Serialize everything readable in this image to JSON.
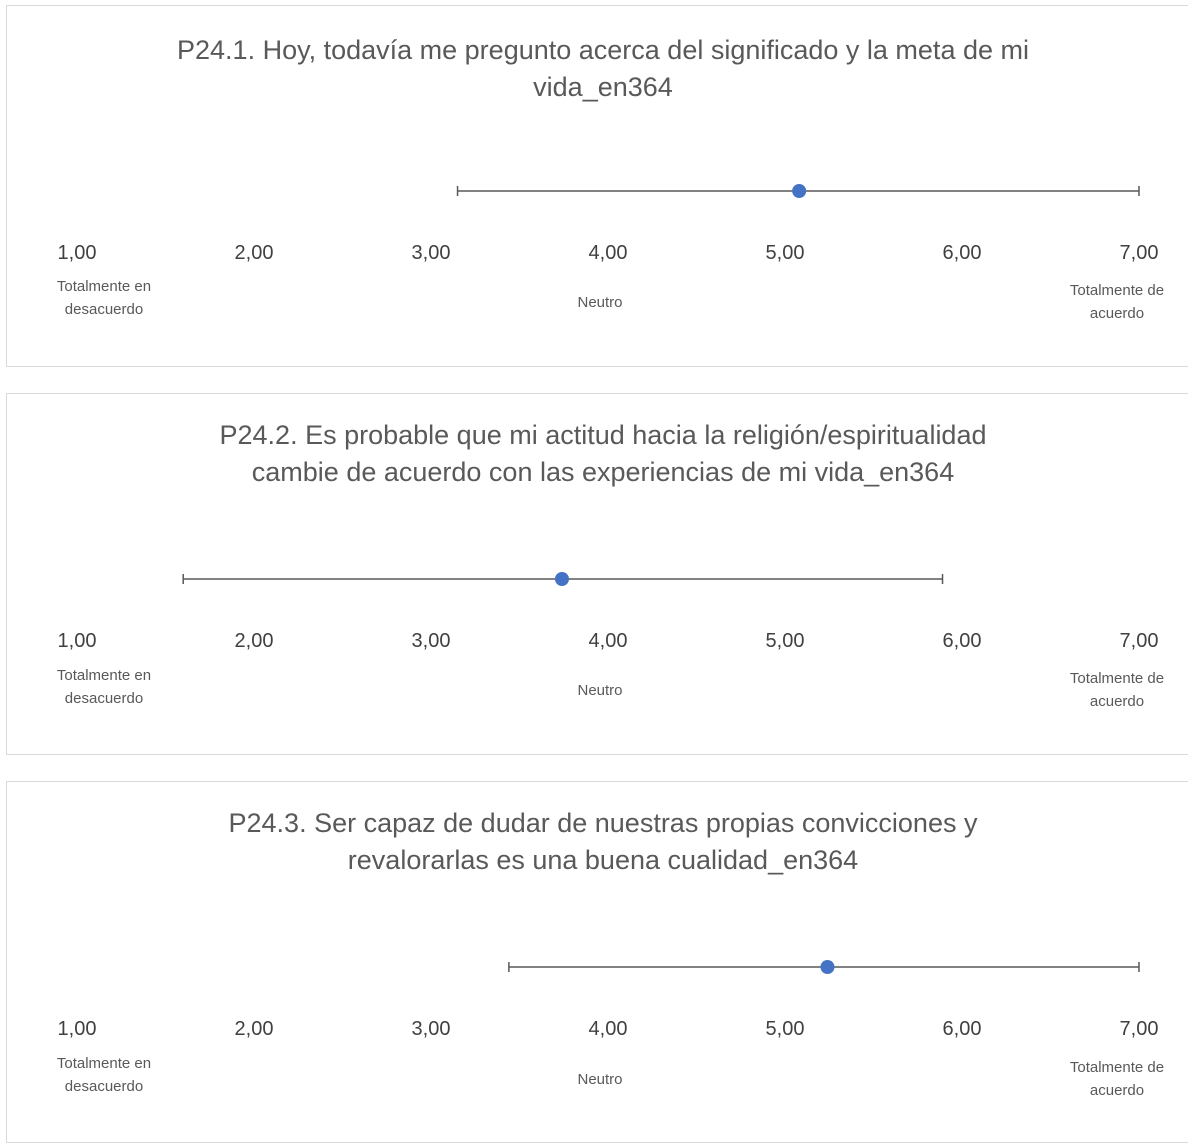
{
  "chart_data": [
    {
      "type": "scatter",
      "title_lines": [
        "P24.1. Hoy, todavía me pregunto acerca del significado y la meta de mi",
        "vida_en364"
      ],
      "xlim": [
        1,
        7
      ],
      "x_ticks": [
        "1,00",
        "2,00",
        "3,00",
        "4,00",
        "5,00",
        "6,00",
        "7,00"
      ],
      "anchors": {
        "left": [
          "Totalmente en",
          "desacuerdo"
        ],
        "center": [
          "Neutro"
        ],
        "right": [
          "Totalmente de",
          "acuerdo"
        ]
      },
      "point": {
        "mean": 5.08,
        "low": 3.15,
        "high": 7.0
      },
      "color": "#4472c4"
    },
    {
      "type": "scatter",
      "title_lines": [
        "P24.2. Es probable que mi actitud hacia la religión/espiritualidad",
        "cambie de acuerdo con las experiencias de mi vida_en364"
      ],
      "xlim": [
        1,
        7
      ],
      "x_ticks": [
        "1,00",
        "2,00",
        "3,00",
        "4,00",
        "5,00",
        "6,00",
        "7,00"
      ],
      "anchors": {
        "left": [
          "Totalmente en",
          "desacuerdo"
        ],
        "center": [
          "Neutro"
        ],
        "right": [
          "Totalmente de",
          "acuerdo"
        ]
      },
      "point": {
        "mean": 3.74,
        "low": 1.6,
        "high": 5.89
      },
      "color": "#4472c4"
    },
    {
      "type": "scatter",
      "title_lines": [
        "P24.3. Ser capaz de dudar de nuestras propias convicciones y",
        "revalorarlas es una buena cualidad_en364"
      ],
      "xlim": [
        1,
        7
      ],
      "x_ticks": [
        "1,00",
        "2,00",
        "3,00",
        "4,00",
        "5,00",
        "6,00",
        "7,00"
      ],
      "anchors": {
        "left": [
          "Totalmente en",
          "desacuerdo"
        ],
        "center": [
          "Neutro"
        ],
        "right": [
          "Totalmente de",
          "acuerdo"
        ]
      },
      "point": {
        "mean": 5.24,
        "low": 3.44,
        "high": 7.0
      },
      "color": "#4472c4"
    }
  ]
}
